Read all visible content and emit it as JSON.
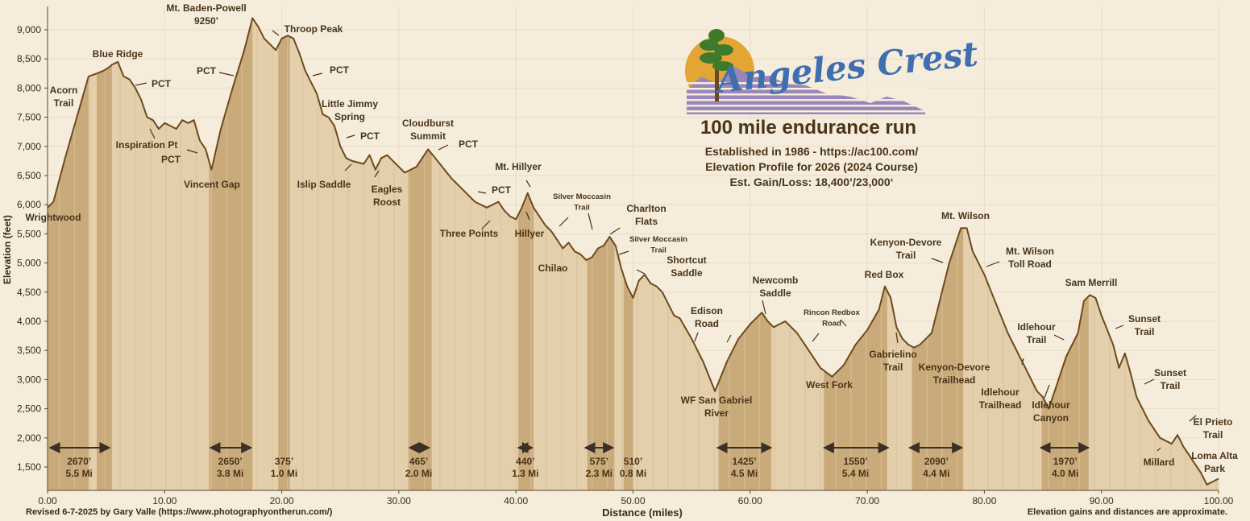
{
  "chart_data": {
    "type": "area",
    "title": "Elevation Profile for 2026 (2024 Course)",
    "xlabel": "Distance (miles)",
    "ylabel": "Elevation (feet)",
    "xlim": [
      0,
      100
    ],
    "ylim": [
      1100,
      9400
    ],
    "x_ticks": [
      0,
      10,
      20,
      30,
      40,
      50,
      60,
      70,
      80,
      90,
      100
    ],
    "x_tick_labels": [
      "0.00",
      "10.00",
      "20.00",
      "30.00",
      "40.00",
      "50.00",
      "60.00",
      "70.00",
      "80.00",
      "90.00",
      "100.00"
    ],
    "y_ticks": [
      1500,
      2000,
      2500,
      3000,
      3500,
      4000,
      4500,
      5000,
      5500,
      6000,
      6500,
      7000,
      7500,
      8000,
      8500,
      9000
    ],
    "y_tick_labels": [
      "1,500",
      "2,000",
      "2,500",
      "3,000",
      "3,500",
      "4,000",
      "4,500",
      "5,000",
      "5,500",
      "6,000",
      "6,500",
      "7,000",
      "7,500",
      "8,000",
      "8,500",
      "9,000"
    ],
    "profile": {
      "x": [
        0,
        0.5,
        1.5,
        2.5,
        3.5,
        4.2,
        4.8,
        5.2,
        5.5,
        6,
        6.5,
        7,
        7.5,
        8,
        8.5,
        9,
        9.5,
        10,
        10.5,
        11,
        11.5,
        12,
        12.5,
        13,
        13.5,
        14,
        14.8,
        15.8,
        16.8,
        17.5,
        18,
        18.5,
        19,
        19.5,
        20,
        20.5,
        21,
        21.5,
        22,
        22.5,
        23,
        23.5,
        24,
        24.5,
        25,
        25.5,
        26,
        27,
        27.5,
        28,
        28.5,
        29,
        29.5,
        30.5,
        31.5,
        32.5,
        33.5,
        34.5,
        35.5,
        36.5,
        37.5,
        38.5,
        39,
        39.5,
        40,
        40.5,
        41,
        41.5,
        42,
        42.5,
        43,
        43.5,
        44,
        44.5,
        45,
        45.5,
        46,
        46.5,
        47,
        47.5,
        48,
        48.5,
        49,
        49.5,
        50,
        50.5,
        51,
        51.5,
        52,
        52.5,
        53,
        53.5,
        54,
        55,
        56,
        57,
        58,
        59,
        60,
        61,
        61.5,
        62,
        62.5,
        63,
        63.5,
        64,
        65,
        66,
        67,
        68,
        69,
        70,
        71,
        71.5,
        72,
        72.5,
        73,
        73.5,
        74,
        74.5,
        75,
        75.5,
        76,
        76.5,
        77,
        78,
        78.5,
        79,
        80,
        81,
        82,
        83,
        83.5,
        84,
        84.5,
        85,
        85.5,
        86,
        87,
        88,
        88.5,
        89,
        89.5,
        90,
        91,
        91.5,
        92,
        92.5,
        93,
        94,
        95,
        96,
        96.5,
        97,
        97.5,
        98,
        98.5,
        99,
        99.5,
        100
      ],
      "y": [
        5950,
        6050,
        6800,
        7500,
        8200,
        8250,
        8300,
        8350,
        8400,
        8450,
        8200,
        8150,
        8000,
        7800,
        7500,
        7450,
        7300,
        7400,
        7350,
        7300,
        7450,
        7400,
        7450,
        7100,
        6950,
        6600,
        7300,
        8000,
        8650,
        9200,
        9050,
        8850,
        8750,
        8650,
        8850,
        8900,
        8850,
        8600,
        8300,
        8100,
        7900,
        7550,
        7500,
        7350,
        7000,
        6800,
        6750,
        6700,
        6850,
        6600,
        6800,
        6850,
        6750,
        6550,
        6650,
        6950,
        6700,
        6450,
        6250,
        6050,
        5950,
        6050,
        5900,
        5800,
        5750,
        5950,
        6200,
        5950,
        5800,
        5650,
        5550,
        5400,
        5250,
        5350,
        5200,
        5150,
        5050,
        5100,
        5250,
        5300,
        5450,
        5300,
        4900,
        4600,
        4400,
        4700,
        4800,
        4650,
        4600,
        4500,
        4300,
        4100,
        4050,
        3700,
        3300,
        2800,
        3300,
        3700,
        3950,
        4150,
        4000,
        3900,
        3950,
        4000,
        3900,
        3800,
        3500,
        3200,
        3050,
        3250,
        3600,
        3850,
        4200,
        4600,
        4400,
        3900,
        3700,
        3600,
        3550,
        3600,
        3700,
        3800,
        4200,
        4600,
        5000,
        5600,
        5600,
        5200,
        4800,
        4300,
        3800,
        3400,
        3200,
        3000,
        2800,
        2700,
        2500,
        2800,
        3400,
        3800,
        4350,
        4450,
        4400,
        4100,
        3600,
        3200,
        3450,
        3100,
        2700,
        2300,
        2000,
        1900,
        2050,
        1850,
        1700,
        1550,
        1400,
        1200,
        1250,
        1300
      ]
    },
    "highlight_bands": [
      {
        "x0": 0,
        "x1": 3.5
      },
      {
        "x0": 4.2,
        "x1": 5.5
      },
      {
        "x0": 13.8,
        "x1": 17.5
      },
      {
        "x0": 19.7,
        "x1": 20.7
      },
      {
        "x0": 30.8,
        "x1": 32.8
      },
      {
        "x0": 40.2,
        "x1": 41.5
      },
      {
        "x0": 46.1,
        "x1": 48.4
      },
      {
        "x0": 49.2,
        "x1": 50.0
      },
      {
        "x0": 57.3,
        "x1": 61.8
      },
      {
        "x0": 66.3,
        "x1": 71.7
      },
      {
        "x0": 73.8,
        "x1": 78.2
      },
      {
        "x0": 84.9,
        "x1": 88.9
      }
    ],
    "segments": [
      {
        "gain": "2670’",
        "dist": "5.5 Mi",
        "x0": 0.2,
        "x1": 5.3,
        "x": 2.7
      },
      {
        "gain": "2650’",
        "dist": "3.8 Mi",
        "x0": 13.9,
        "x1": 17.4,
        "x": 15.6
      },
      {
        "gain": "375’",
        "dist": "1.0 Mi",
        "x0": null,
        "x1": null,
        "x": 20.2
      },
      {
        "gain": "465’",
        "dist": "2.0 Mi",
        "x0": 30.9,
        "x1": 32.6,
        "x": 31.7
      },
      {
        "gain": "440’",
        "dist": "1.3 Mi",
        "x0": 40.2,
        "x1": 41.4,
        "x": 40.8
      },
      {
        "gain": "575’",
        "dist": "2.3 Mi",
        "x0": 45.9,
        "x1": 48.3,
        "x": 47.1
      },
      {
        "gain": "510’",
        "dist": "0.8 Mi",
        "x0": null,
        "x1": null,
        "x": 50.0
      },
      {
        "gain": "1425’",
        "dist": "4.5 Mi",
        "x0": 57.2,
        "x1": 61.8,
        "x": 59.5
      },
      {
        "gain": "1550’",
        "dist": "5.4 Mi",
        "x0": 66.3,
        "x1": 71.8,
        "x": 69.0
      },
      {
        "gain": "2090’",
        "dist": "4.4 Mi",
        "x0": 73.6,
        "x1": 78.1,
        "x": 75.9
      },
      {
        "gain": "1970’",
        "dist": "4.0 Mi",
        "x0": 84.8,
        "x1": 88.9,
        "x": 86.9
      }
    ],
    "annotations": [
      {
        "id": "wrightwood",
        "lines": [
          "Wrightwood"
        ]
      },
      {
        "id": "acorn-trail",
        "lines": [
          "Acorn",
          "Trail"
        ]
      },
      {
        "id": "blue-ridge",
        "lines": [
          "Blue Ridge"
        ]
      },
      {
        "id": "pct-1",
        "lines": [
          "PCT"
        ]
      },
      {
        "id": "inspiration-pt",
        "lines": [
          "Inspiration Pt"
        ]
      },
      {
        "id": "pct-2",
        "lines": [
          "PCT"
        ]
      },
      {
        "id": "vincent-gap",
        "lines": [
          "Vincent Gap"
        ]
      },
      {
        "id": "mt-baden-powell",
        "lines": [
          "Mt. Baden-Powell",
          "9250’"
        ]
      },
      {
        "id": "pct-3",
        "lines": [
          "PCT"
        ]
      },
      {
        "id": "throop-peak",
        "lines": [
          "Throop Peak"
        ]
      },
      {
        "id": "pct-4",
        "lines": [
          "PCT"
        ]
      },
      {
        "id": "little-jimmy-spring",
        "lines": [
          "Little Jimmy",
          "Spring"
        ]
      },
      {
        "id": "pct-5",
        "lines": [
          "PCT"
        ]
      },
      {
        "id": "islip-saddle",
        "lines": [
          "Islip Saddle"
        ]
      },
      {
        "id": "eagles-roost",
        "lines": [
          "Eagles",
          "Roost"
        ]
      },
      {
        "id": "cloudburst-summit",
        "lines": [
          "Cloudburst",
          "Summit"
        ]
      },
      {
        "id": "pct-6",
        "lines": [
          "PCT"
        ]
      },
      {
        "id": "pct-7",
        "lines": [
          "PCT"
        ]
      },
      {
        "id": "three-points",
        "lines": [
          "Three Points"
        ]
      },
      {
        "id": "mt-hillyer",
        "lines": [
          "Mt. Hillyer"
        ]
      },
      {
        "id": "hillyer",
        "lines": [
          "Hillyer"
        ]
      },
      {
        "id": "silver-moccasin-1",
        "lines": [
          "Silver Moccasin",
          "Trail"
        ]
      },
      {
        "id": "chilao",
        "lines": [
          "Chilao"
        ]
      },
      {
        "id": "charlton-flats",
        "lines": [
          "Charlton",
          "Flats"
        ]
      },
      {
        "id": "silver-moccasin-2",
        "lines": [
          "Silver Moccasin",
          "Trail"
        ]
      },
      {
        "id": "shortcut-saddle",
        "lines": [
          "Shortcut",
          "Saddle"
        ]
      },
      {
        "id": "edison-road",
        "lines": [
          "Edison",
          "Road"
        ]
      },
      {
        "id": "wf-san-gabriel",
        "lines": [
          "WF San Gabriel",
          "River"
        ]
      },
      {
        "id": "newcomb-saddle",
        "lines": [
          "Newcomb",
          "Saddle"
        ]
      },
      {
        "id": "rincon-redbox",
        "lines": [
          "Rincon Redbox",
          "Road"
        ]
      },
      {
        "id": "west-fork",
        "lines": [
          "West Fork"
        ]
      },
      {
        "id": "red-box",
        "lines": [
          "Red Box"
        ]
      },
      {
        "id": "gabrielino-trail",
        "lines": [
          "Gabrielino",
          "Trail"
        ]
      },
      {
        "id": "kenyon-devore-trail",
        "lines": [
          "Kenyon-Devore",
          "Trail"
        ]
      },
      {
        "id": "kenyon-devore-trailhead",
        "lines": [
          "Kenyon-Devore",
          "Trailhead"
        ]
      },
      {
        "id": "mt-wilson",
        "lines": [
          "Mt. Wilson"
        ]
      },
      {
        "id": "mt-wilson-toll-road",
        "lines": [
          "Mt. Wilson",
          "Toll Road"
        ]
      },
      {
        "id": "idlehour-trailhead",
        "lines": [
          "Idlehour",
          "Trailhead"
        ]
      },
      {
        "id": "idlehour-canyon",
        "lines": [
          "Idlehour",
          "Canyon"
        ]
      },
      {
        "id": "idlehour-trail",
        "lines": [
          "Idlehour",
          "Trail"
        ]
      },
      {
        "id": "sam-merrill",
        "lines": [
          "Sam Merrill"
        ]
      },
      {
        "id": "sunset-trail-1",
        "lines": [
          "Sunset",
          "Trail"
        ]
      },
      {
        "id": "sunset-trail-2",
        "lines": [
          "Sunset",
          "Trail"
        ]
      },
      {
        "id": "millard",
        "lines": [
          "Millard"
        ]
      },
      {
        "id": "el-prieto-trail",
        "lines": [
          "El Prieto",
          "Trail"
        ]
      },
      {
        "id": "loma-alta-park",
        "lines": [
          "Loma Alta",
          "Park"
        ]
      }
    ],
    "colors": {
      "background": "#f5ecdc",
      "fill": "#e3cfac",
      "band": "#c5a574",
      "line": "#6e4a1c",
      "text": "#4a3418",
      "arrow": "#3a3028"
    }
  },
  "logo": {
    "brand": "Angeles Crest",
    "subtitle": "100 mile endurance run",
    "info_lines": [
      "Established in 1986  -  https://ac100.com/",
      "Elevation Profile for 2026 (2024 Course)",
      "Est. Gain/Loss: 18,400’/23,000‘"
    ],
    "colors": {
      "sun": "#e3a634",
      "tree": "#3d7a2c",
      "trunk": "#6b4a22",
      "mountains": "#9a86b8",
      "brand": "#3f6fae"
    }
  },
  "footer": {
    "credit": "Revised 6-7-2025 by Gary Valle (https://www.photographyontherun.com/)",
    "disclaimer": "Elevation gains and distances are approximate."
  }
}
